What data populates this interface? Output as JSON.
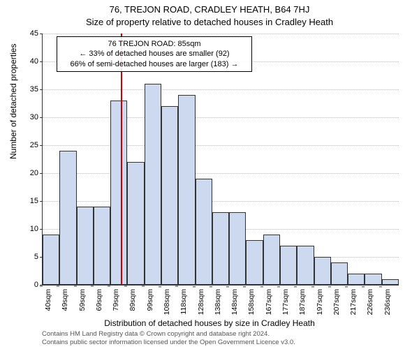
{
  "title_main": "76, TREJON ROAD, CRADLEY HEATH, B64 7HJ",
  "title_sub": "Size of property relative to detached houses in Cradley Heath",
  "ylabel": "Number of detached properties",
  "xlabel": "Distribution of detached houses by size in Cradley Heath",
  "chart": {
    "type": "histogram",
    "ylim": [
      0,
      45
    ],
    "ytick_step": 5,
    "categories": [
      "40sqm",
      "49sqm",
      "59sqm",
      "69sqm",
      "79sqm",
      "89sqm",
      "99sqm",
      "108sqm",
      "118sqm",
      "128sqm",
      "138sqm",
      "148sqm",
      "158sqm",
      "167sqm",
      "177sqm",
      "187sqm",
      "197sqm",
      "207sqm",
      "217sqm",
      "226sqm",
      "236sqm"
    ],
    "values": [
      9,
      24,
      14,
      14,
      33,
      22,
      36,
      32,
      34,
      19,
      13,
      13,
      8,
      9,
      7,
      7,
      5,
      4,
      2,
      2,
      1
    ],
    "bar_fill": "#ccd9ee",
    "bar_border": "#333333",
    "bar_border_width": 0.5,
    "background_color": "#ffffff",
    "grid_color": "#bbbbbb",
    "ref_line_value": 85,
    "ref_line_color": "#cc0000",
    "annotation_lines": [
      "76 TREJON ROAD: 85sqm",
      "← 33% of detached houses are smaller (92)",
      "66% of semi-detached houses are larger (183) →"
    ],
    "axis_fontsize": 11,
    "label_fontsize": 12,
    "title_fontsize": 13
  },
  "attribution_line1": "Contains HM Land Registry data © Crown copyright and database right 2024.",
  "attribution_line2": "Contains public sector information licensed under the Open Government Licence v3.0."
}
